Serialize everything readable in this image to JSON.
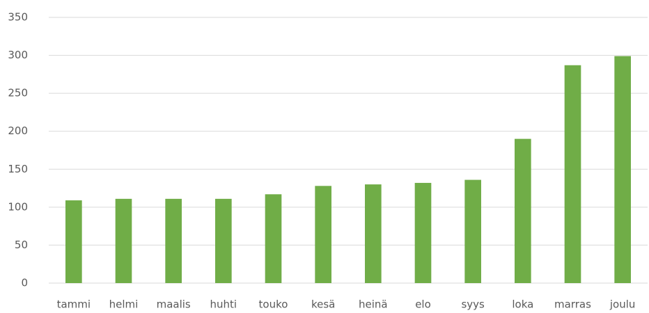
{
  "chart_data": {
    "type": "bar",
    "categories": [
      "tammi",
      "helmi",
      "maalis",
      "huhti",
      "touko",
      "kesä",
      "heinä",
      "elo",
      "syys",
      "loka",
      "marras",
      "joulu"
    ],
    "values": [
      109,
      111,
      111,
      111,
      117,
      128,
      130,
      132,
      136,
      190,
      287,
      299
    ],
    "color": "#70ad47",
    "ylim": [
      0,
      350
    ],
    "yticks": [
      0,
      50,
      100,
      150,
      200,
      250,
      300,
      350
    ],
    "grid": true
  }
}
